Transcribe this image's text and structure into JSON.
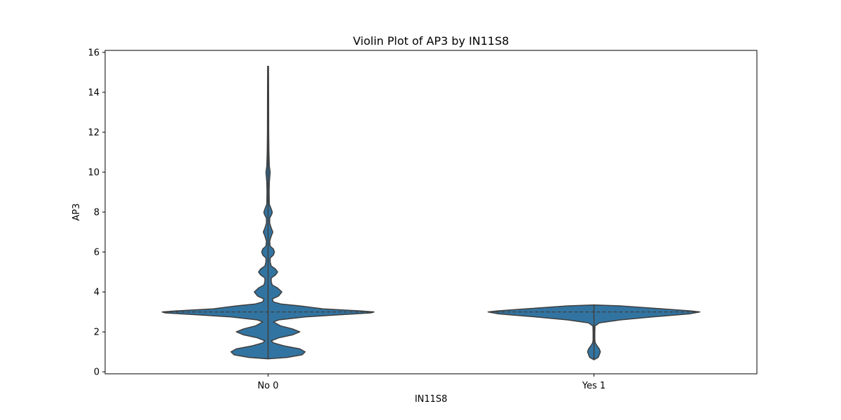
{
  "chart_data": {
    "type": "violin",
    "title": "Violin Plot of AP3 by IN11S8",
    "xlabel": "IN11S8",
    "ylabel": "AP3",
    "ylim": [
      -0.1,
      16.1
    ],
    "yticks": [
      0,
      2,
      4,
      6,
      8,
      10,
      12,
      14,
      16
    ],
    "grid": false,
    "color": "#3274a1",
    "edge_color": "#3f3f3f",
    "categories": [
      "No 0",
      "Yes 1"
    ],
    "violins": [
      {
        "category": "No 0",
        "min": 0.65,
        "max": 15.3,
        "median": 3,
        "profile": [
          [
            0.65,
            0.0
          ],
          [
            0.72,
            0.18
          ],
          [
            0.85,
            0.32
          ],
          [
            1.0,
            0.35
          ],
          [
            1.15,
            0.3
          ],
          [
            1.3,
            0.15
          ],
          [
            1.45,
            0.05
          ],
          [
            1.55,
            0.03
          ],
          [
            1.7,
            0.1
          ],
          [
            1.85,
            0.23
          ],
          [
            2.0,
            0.3
          ],
          [
            2.15,
            0.23
          ],
          [
            2.3,
            0.12
          ],
          [
            2.5,
            0.05
          ],
          [
            2.6,
            0.1
          ],
          [
            2.75,
            0.35
          ],
          [
            2.85,
            0.65
          ],
          [
            2.95,
            0.97
          ],
          [
            3.0,
            1.0
          ],
          [
            3.05,
            0.88
          ],
          [
            3.15,
            0.52
          ],
          [
            3.3,
            0.3
          ],
          [
            3.4,
            0.12
          ],
          [
            3.5,
            0.05
          ],
          [
            3.65,
            0.04
          ],
          [
            3.8,
            0.1
          ],
          [
            4.0,
            0.13
          ],
          [
            4.2,
            0.09
          ],
          [
            4.35,
            0.04
          ],
          [
            4.5,
            0.03
          ],
          [
            4.7,
            0.03
          ],
          [
            4.85,
            0.07
          ],
          [
            5.0,
            0.09
          ],
          [
            5.15,
            0.07
          ],
          [
            5.3,
            0.03
          ],
          [
            5.5,
            0.02
          ],
          [
            5.7,
            0.02
          ],
          [
            5.85,
            0.05
          ],
          [
            6.0,
            0.06
          ],
          [
            6.15,
            0.05
          ],
          [
            6.3,
            0.02
          ],
          [
            6.55,
            0.015
          ],
          [
            6.8,
            0.03
          ],
          [
            7.0,
            0.045
          ],
          [
            7.2,
            0.03
          ],
          [
            7.45,
            0.015
          ],
          [
            7.7,
            0.015
          ],
          [
            7.9,
            0.035
          ],
          [
            8.0,
            0.04
          ],
          [
            8.15,
            0.03
          ],
          [
            8.4,
            0.012
          ],
          [
            9.0,
            0.01
          ],
          [
            9.5,
            0.012
          ],
          [
            10.0,
            0.02
          ],
          [
            10.3,
            0.012
          ],
          [
            11.0,
            0.008
          ],
          [
            12.0,
            0.006
          ],
          [
            13.5,
            0.005
          ],
          [
            15.3,
            0.004
          ]
        ]
      },
      {
        "category": "Yes 1",
        "min": 0.6,
        "max": 3.35,
        "median": 3,
        "profile": [
          [
            0.6,
            0.0
          ],
          [
            0.72,
            0.04
          ],
          [
            0.85,
            0.05
          ],
          [
            1.0,
            0.06
          ],
          [
            1.15,
            0.05
          ],
          [
            1.3,
            0.03
          ],
          [
            1.45,
            0.012
          ],
          [
            1.6,
            0.008
          ],
          [
            2.0,
            0.008
          ],
          [
            2.3,
            0.01
          ],
          [
            2.45,
            0.05
          ],
          [
            2.6,
            0.25
          ],
          [
            2.75,
            0.55
          ],
          [
            2.9,
            0.9
          ],
          [
            3.0,
            1.0
          ],
          [
            3.05,
            0.92
          ],
          [
            3.15,
            0.65
          ],
          [
            3.3,
            0.25
          ],
          [
            3.35,
            0.0
          ]
        ]
      }
    ]
  }
}
